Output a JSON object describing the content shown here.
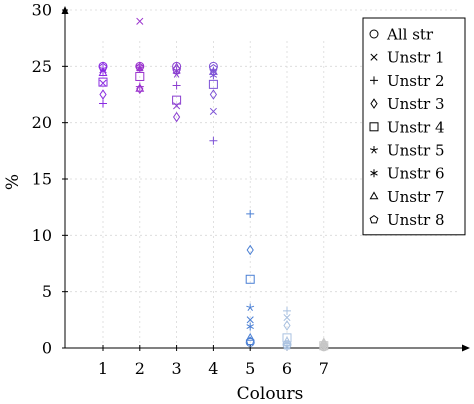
{
  "chart_data": {
    "type": "scatter",
    "title": "",
    "xlabel": "Colours",
    "ylabel": "%",
    "xlim": [
      0,
      10
    ],
    "ylim": [
      0,
      30
    ],
    "x_ticks": [
      1,
      2,
      3,
      4,
      5,
      6,
      7
    ],
    "y_ticks": [
      0,
      5,
      10,
      15,
      20,
      25,
      30
    ],
    "grid": "horizontal dashed",
    "legend_position": "top-right",
    "color_ramp_by_x": {
      "1": "#8a2be2",
      "2": "#9a32cd",
      "3": "#8b3fd0",
      "4": "#7d52d6",
      "5": "#4a7fd4",
      "6": "#a9c1e0",
      "7": "#c6c6c6"
    },
    "series": [
      {
        "name": "All str",
        "marker": "circle",
        "points": [
          [
            1,
            25.0
          ],
          [
            2,
            25.0
          ],
          [
            3,
            25.0
          ],
          [
            4,
            25.0
          ],
          [
            5,
            0.5
          ],
          [
            6,
            0.3
          ],
          [
            7,
            0.1
          ]
        ]
      },
      {
        "name": "Unstr 1",
        "marker": "cross",
        "points": [
          [
            1,
            23.5
          ],
          [
            2,
            29.0
          ],
          [
            3,
            21.5
          ],
          [
            4,
            21.0
          ],
          [
            5,
            2.5
          ],
          [
            6,
            2.7
          ],
          [
            7,
            0.3
          ]
        ]
      },
      {
        "name": "Unstr 2",
        "marker": "plus",
        "points": [
          [
            1,
            21.7
          ],
          [
            2,
            23.2
          ],
          [
            3,
            23.3
          ],
          [
            4,
            18.4
          ],
          [
            5,
            11.9
          ],
          [
            6,
            3.3
          ],
          [
            7,
            0.2
          ]
        ]
      },
      {
        "name": "Unstr 3",
        "marker": "diamond",
        "points": [
          [
            1,
            22.5
          ],
          [
            2,
            23.0
          ],
          [
            3,
            20.5
          ],
          [
            4,
            22.5
          ],
          [
            5,
            8.7
          ],
          [
            6,
            2.0
          ],
          [
            7,
            0.3
          ]
        ]
      },
      {
        "name": "Unstr 4",
        "marker": "square",
        "points": [
          [
            1,
            23.6
          ],
          [
            2,
            24.1
          ],
          [
            3,
            22.0
          ],
          [
            4,
            23.4
          ],
          [
            5,
            6.1
          ],
          [
            6,
            0.9
          ],
          [
            7,
            0.2
          ]
        ]
      },
      {
        "name": "Unstr 5",
        "marker": "star5",
        "points": [
          [
            1,
            24.8
          ],
          [
            2,
            25.0
          ],
          [
            3,
            24.3
          ],
          [
            4,
            24.6
          ],
          [
            5,
            3.6
          ],
          [
            6,
            0.2
          ],
          [
            7,
            0.1
          ]
        ]
      },
      {
        "name": "Unstr 6",
        "marker": "asterisk",
        "points": [
          [
            1,
            24.6
          ],
          [
            2,
            24.8
          ],
          [
            3,
            24.6
          ],
          [
            4,
            24.2
          ],
          [
            5,
            1.9
          ],
          [
            6,
            0.1
          ],
          [
            7,
            0.1
          ]
        ]
      },
      {
        "name": "Unstr 7",
        "marker": "triangle",
        "points": [
          [
            1,
            24.4
          ],
          [
            2,
            23.0
          ],
          [
            3,
            24.9
          ],
          [
            4,
            24.5
          ],
          [
            5,
            0.9
          ],
          [
            6,
            0.6
          ],
          [
            7,
            0.5
          ]
        ]
      },
      {
        "name": "Unstr 8",
        "marker": "pentagon",
        "points": [
          [
            1,
            24.9
          ],
          [
            2,
            24.9
          ],
          [
            3,
            24.7
          ],
          [
            4,
            24.8
          ],
          [
            5,
            0.6
          ],
          [
            6,
            0.2
          ],
          [
            7,
            0.1
          ]
        ]
      }
    ]
  }
}
